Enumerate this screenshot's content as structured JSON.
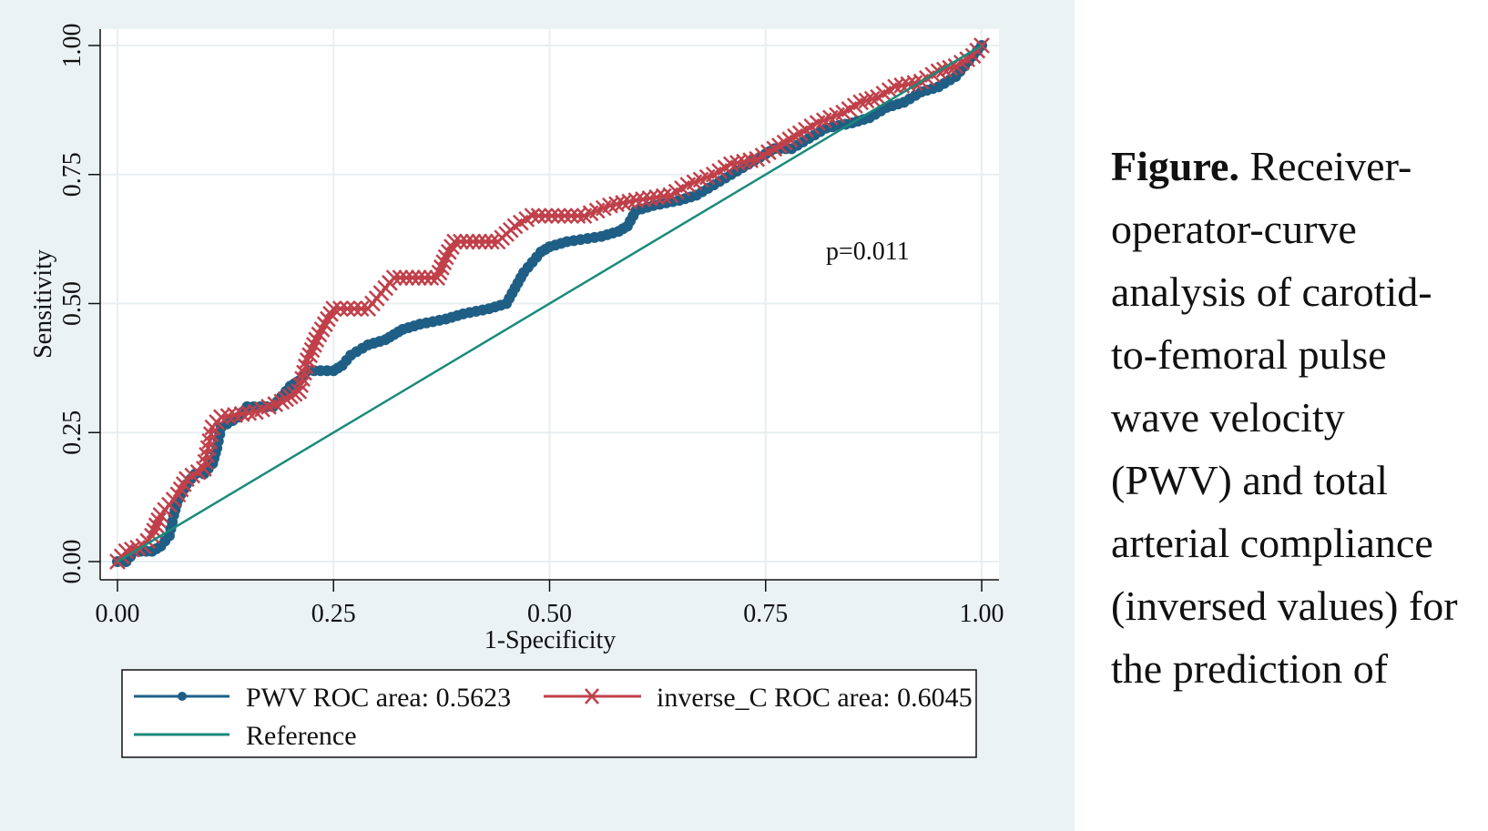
{
  "chart_data": {
    "type": "line",
    "title": "",
    "xlabel": "1-Specificity",
    "ylabel": "Sensitivity",
    "xlim": [
      0,
      1
    ],
    "ylim": [
      0,
      1
    ],
    "xticks": [
      "0.00",
      "0.25",
      "0.50",
      "0.75",
      "1.00"
    ],
    "yticks": [
      "0.00",
      "0.25",
      "0.50",
      "0.75",
      "1.00"
    ],
    "grid": true,
    "annotation": "p=0.011",
    "legend_position": "bottom",
    "series": [
      {
        "name": "PWV ROC area: 0.5623",
        "marker": "circle",
        "color": "#1f5f86",
        "points": [
          [
            0,
            0
          ],
          [
            0.01,
            0
          ],
          [
            0.02,
            0.02
          ],
          [
            0.04,
            0.02
          ],
          [
            0.05,
            0.03
          ],
          [
            0.06,
            0.05
          ],
          [
            0.065,
            0.09
          ],
          [
            0.07,
            0.12
          ],
          [
            0.08,
            0.15
          ],
          [
            0.09,
            0.17
          ],
          [
            0.1,
            0.17
          ],
          [
            0.11,
            0.19
          ],
          [
            0.115,
            0.22
          ],
          [
            0.12,
            0.26
          ],
          [
            0.14,
            0.28
          ],
          [
            0.15,
            0.3
          ],
          [
            0.18,
            0.3
          ],
          [
            0.19,
            0.32
          ],
          [
            0.2,
            0.34
          ],
          [
            0.21,
            0.35
          ],
          [
            0.22,
            0.37
          ],
          [
            0.25,
            0.37
          ],
          [
            0.26,
            0.38
          ],
          [
            0.27,
            0.4
          ],
          [
            0.29,
            0.42
          ],
          [
            0.31,
            0.43
          ],
          [
            0.32,
            0.44
          ],
          [
            0.33,
            0.45
          ],
          [
            0.35,
            0.46
          ],
          [
            0.38,
            0.47
          ],
          [
            0.4,
            0.48
          ],
          [
            0.43,
            0.49
          ],
          [
            0.45,
            0.5
          ],
          [
            0.46,
            0.53
          ],
          [
            0.47,
            0.56
          ],
          [
            0.48,
            0.58
          ],
          [
            0.49,
            0.6
          ],
          [
            0.5,
            0.61
          ],
          [
            0.52,
            0.62
          ],
          [
            0.56,
            0.63
          ],
          [
            0.58,
            0.64
          ],
          [
            0.59,
            0.65
          ],
          [
            0.6,
            0.68
          ],
          [
            0.62,
            0.69
          ],
          [
            0.65,
            0.7
          ],
          [
            0.67,
            0.71
          ],
          [
            0.69,
            0.73
          ],
          [
            0.71,
            0.75
          ],
          [
            0.73,
            0.77
          ],
          [
            0.75,
            0.79
          ],
          [
            0.76,
            0.8
          ],
          [
            0.78,
            0.8
          ],
          [
            0.8,
            0.82
          ],
          [
            0.82,
            0.84
          ],
          [
            0.85,
            0.85
          ],
          [
            0.87,
            0.86
          ],
          [
            0.89,
            0.88
          ],
          [
            0.91,
            0.89
          ],
          [
            0.93,
            0.91
          ],
          [
            0.95,
            0.92
          ],
          [
            0.97,
            0.94
          ],
          [
            0.98,
            0.96
          ],
          [
            1,
            1
          ]
        ]
      },
      {
        "name": "inverse_C ROC area: 0.6045",
        "marker": "x",
        "color": "#c0404a",
        "points": [
          [
            0,
            0
          ],
          [
            0.01,
            0.02
          ],
          [
            0.03,
            0.03
          ],
          [
            0.04,
            0.05
          ],
          [
            0.05,
            0.09
          ],
          [
            0.06,
            0.11
          ],
          [
            0.07,
            0.13
          ],
          [
            0.08,
            0.16
          ],
          [
            0.1,
            0.18
          ],
          [
            0.105,
            0.22
          ],
          [
            0.11,
            0.26
          ],
          [
            0.12,
            0.28
          ],
          [
            0.16,
            0.29
          ],
          [
            0.19,
            0.31
          ],
          [
            0.2,
            0.32
          ],
          [
            0.21,
            0.33
          ],
          [
            0.22,
            0.39
          ],
          [
            0.23,
            0.43
          ],
          [
            0.24,
            0.46
          ],
          [
            0.25,
            0.49
          ],
          [
            0.29,
            0.49
          ],
          [
            0.3,
            0.51
          ],
          [
            0.31,
            0.53
          ],
          [
            0.32,
            0.55
          ],
          [
            0.37,
            0.55
          ],
          [
            0.38,
            0.59
          ],
          [
            0.39,
            0.62
          ],
          [
            0.44,
            0.62
          ],
          [
            0.46,
            0.65
          ],
          [
            0.48,
            0.67
          ],
          [
            0.54,
            0.67
          ],
          [
            0.57,
            0.69
          ],
          [
            0.6,
            0.7
          ],
          [
            0.64,
            0.71
          ],
          [
            0.66,
            0.73
          ],
          [
            0.69,
            0.75
          ],
          [
            0.71,
            0.77
          ],
          [
            0.74,
            0.78
          ],
          [
            0.76,
            0.8
          ],
          [
            0.79,
            0.83
          ],
          [
            0.81,
            0.85
          ],
          [
            0.84,
            0.87
          ],
          [
            0.86,
            0.89
          ],
          [
            0.88,
            0.9
          ],
          [
            0.9,
            0.92
          ],
          [
            0.93,
            0.93
          ],
          [
            0.95,
            0.95
          ],
          [
            0.97,
            0.96
          ],
          [
            0.99,
            0.98
          ],
          [
            1,
            1
          ]
        ]
      },
      {
        "name": "Reference",
        "marker": "none",
        "color": "#1a8a7a",
        "points": [
          [
            0,
            0
          ],
          [
            1,
            1
          ]
        ]
      }
    ]
  },
  "caption": {
    "bold": "Figure.",
    "lines": [
      "Receiver-",
      "operator-curve",
      "analysis of carotid-",
      "to-femoral pulse",
      "wave velocity",
      "(PWV) and total",
      "arterial compliance",
      "(inversed values) for",
      "the prediction of"
    ]
  }
}
